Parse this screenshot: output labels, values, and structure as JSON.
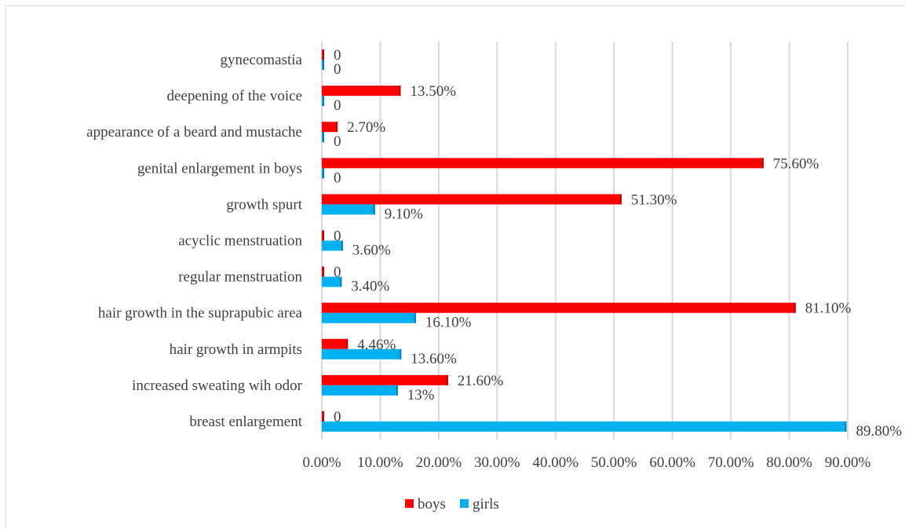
{
  "chart_data": {
    "type": "bar",
    "orientation": "horizontal",
    "categories": [
      "breast enlargement",
      "increased sweating wih odor",
      "hair growth in armpits",
      "hair growth in the suprapubic area",
      "regular menstruation",
      "acyclic menstruation",
      "growth spurt",
      "genital enlargement in boys",
      "appearance of a beard and mustache",
      "deepening of the voice",
      "gynecomastia"
    ],
    "series": [
      {
        "name": "boys",
        "color": "#ff0000",
        "values": [
          0,
          21.6,
          4.46,
          81.1,
          0,
          0,
          51.3,
          75.6,
          2.7,
          13.5,
          0
        ],
        "labels": [
          "0",
          "21.60%",
          "4.46%",
          "81.10%",
          "0",
          "0",
          "51.30%",
          "75.60%",
          "2.70%",
          "13.50%",
          "0"
        ]
      },
      {
        "name": "girls",
        "color": "#00b0f0",
        "values": [
          89.8,
          13,
          13.6,
          16.1,
          3.4,
          3.6,
          9.1,
          0,
          0,
          0,
          0
        ],
        "labels": [
          "89.80%",
          "13%",
          "13.60%",
          "16.10%",
          "3.40%",
          "3.60%",
          "9.10%",
          "0",
          "0",
          "0",
          "0"
        ]
      }
    ],
    "x_ticks": [
      "0.00%",
      "10.00%",
      "20.00%",
      "30.00%",
      "40.00%",
      "50.00%",
      "60.00%",
      "70.00%",
      "80.00%",
      "90.00%"
    ],
    "xlim": [
      0,
      90
    ],
    "grid": "vertical",
    "legend": "bottom"
  }
}
